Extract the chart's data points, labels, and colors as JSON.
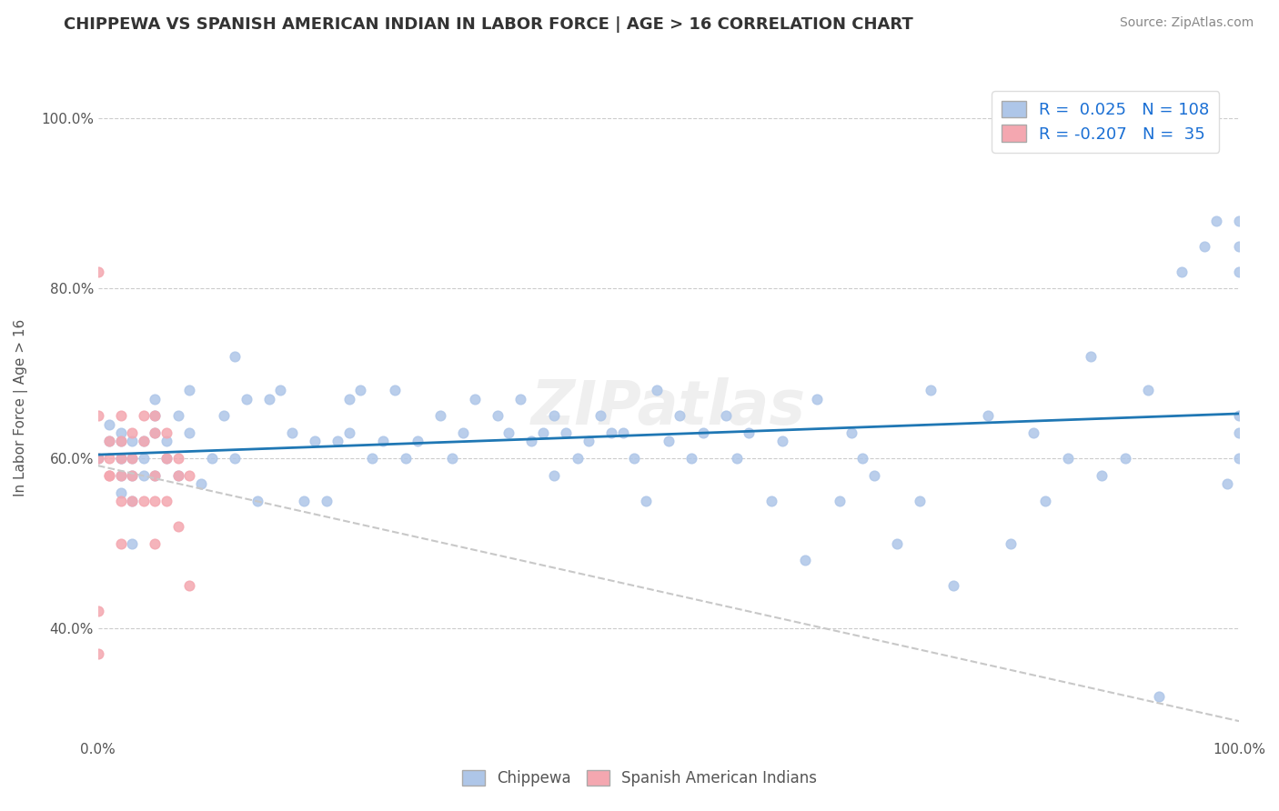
{
  "title": "CHIPPEWA VS SPANISH AMERICAN INDIAN IN LABOR FORCE | AGE > 16 CORRELATION CHART",
  "source": "Source: ZipAtlas.com",
  "xlabel": "",
  "ylabel": "In Labor Force | Age > 16",
  "xlim": [
    0.0,
    1.0
  ],
  "ylim": [
    0.25,
    1.05
  ],
  "x_tick_labels": [
    "0.0%",
    "100.0%"
  ],
  "y_tick_labels": [
    "40.0%",
    "60.0%",
    "80.0%",
    "100.0%"
  ],
  "legend_labels": [
    "Chippewa",
    "Spanish American Indians"
  ],
  "r_chippewa": 0.025,
  "n_chippewa": 108,
  "r_spanish": -0.207,
  "n_spanish": 35,
  "chippewa_color": "#aec6e8",
  "spanish_color": "#f4a7b0",
  "chippewa_line_color": "#1f77b4",
  "spanish_line_color": "#e8727a",
  "spanish_trend_color": "#c8c8c8",
  "background_color": "#ffffff",
  "watermark": "ZIPatlas",
  "chippewa_x": [
    0.0,
    0.01,
    0.01,
    0.02,
    0.02,
    0.02,
    0.02,
    0.02,
    0.02,
    0.03,
    0.03,
    0.03,
    0.03,
    0.03,
    0.04,
    0.04,
    0.04,
    0.05,
    0.05,
    0.05,
    0.05,
    0.06,
    0.06,
    0.07,
    0.07,
    0.08,
    0.08,
    0.09,
    0.1,
    0.11,
    0.12,
    0.12,
    0.13,
    0.14,
    0.15,
    0.16,
    0.17,
    0.18,
    0.19,
    0.2,
    0.21,
    0.22,
    0.22,
    0.23,
    0.24,
    0.25,
    0.26,
    0.27,
    0.28,
    0.3,
    0.31,
    0.32,
    0.33,
    0.35,
    0.36,
    0.37,
    0.38,
    0.39,
    0.4,
    0.4,
    0.41,
    0.42,
    0.43,
    0.44,
    0.45,
    0.46,
    0.47,
    0.48,
    0.49,
    0.5,
    0.51,
    0.52,
    0.53,
    0.55,
    0.56,
    0.57,
    0.59,
    0.6,
    0.62,
    0.63,
    0.65,
    0.66,
    0.67,
    0.68,
    0.7,
    0.72,
    0.73,
    0.75,
    0.78,
    0.8,
    0.82,
    0.83,
    0.85,
    0.87,
    0.88,
    0.9,
    0.92,
    0.93,
    0.95,
    0.97,
    0.98,
    0.99,
    1.0,
    1.0,
    1.0,
    1.0,
    1.0,
    1.0
  ],
  "chippewa_y": [
    0.6,
    0.62,
    0.64,
    0.6,
    0.62,
    0.6,
    0.58,
    0.56,
    0.63,
    0.6,
    0.58,
    0.55,
    0.5,
    0.62,
    0.62,
    0.6,
    0.58,
    0.63,
    0.67,
    0.65,
    0.58,
    0.62,
    0.6,
    0.65,
    0.58,
    0.68,
    0.63,
    0.57,
    0.6,
    0.65,
    0.72,
    0.6,
    0.67,
    0.55,
    0.67,
    0.68,
    0.63,
    0.55,
    0.62,
    0.55,
    0.62,
    0.67,
    0.63,
    0.68,
    0.6,
    0.62,
    0.68,
    0.6,
    0.62,
    0.65,
    0.6,
    0.63,
    0.67,
    0.65,
    0.63,
    0.67,
    0.62,
    0.63,
    0.65,
    0.58,
    0.63,
    0.6,
    0.62,
    0.65,
    0.63,
    0.63,
    0.6,
    0.55,
    0.68,
    0.62,
    0.65,
    0.6,
    0.63,
    0.65,
    0.6,
    0.63,
    0.55,
    0.62,
    0.48,
    0.67,
    0.55,
    0.63,
    0.6,
    0.58,
    0.5,
    0.55,
    0.68,
    0.45,
    0.65,
    0.5,
    0.63,
    0.55,
    0.6,
    0.72,
    0.58,
    0.6,
    0.68,
    0.32,
    0.82,
    0.85,
    0.88,
    0.57,
    0.82,
    0.85,
    0.88,
    0.6,
    0.63,
    0.65
  ],
  "spanish_x": [
    0.0,
    0.0,
    0.0,
    0.0,
    0.0,
    0.01,
    0.01,
    0.01,
    0.01,
    0.02,
    0.02,
    0.02,
    0.02,
    0.02,
    0.02,
    0.03,
    0.03,
    0.03,
    0.03,
    0.04,
    0.04,
    0.04,
    0.05,
    0.05,
    0.05,
    0.05,
    0.05,
    0.06,
    0.06,
    0.06,
    0.07,
    0.07,
    0.07,
    0.08,
    0.08
  ],
  "spanish_y": [
    0.82,
    0.65,
    0.6,
    0.42,
    0.37,
    0.62,
    0.6,
    0.58,
    0.58,
    0.65,
    0.62,
    0.6,
    0.58,
    0.55,
    0.5,
    0.63,
    0.6,
    0.58,
    0.55,
    0.65,
    0.62,
    0.55,
    0.65,
    0.63,
    0.58,
    0.55,
    0.5,
    0.63,
    0.6,
    0.55,
    0.6,
    0.58,
    0.52,
    0.58,
    0.45
  ]
}
